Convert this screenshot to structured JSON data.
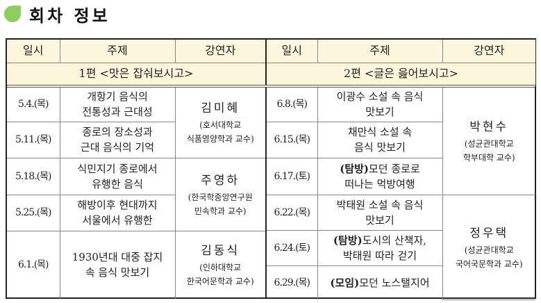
{
  "title": "회차 정보",
  "accent_color": "#8dcf5f",
  "header_bg": "#fdf6dc",
  "columns": [
    "일시",
    "주제",
    "강연자"
  ],
  "part1": {
    "label": "1편 <맛은 잡숴보시고>",
    "rows": [
      {
        "date": "5.4.(목)",
        "topic_l1": "개항기 음식의",
        "topic_l2": "전통성과 근대성"
      },
      {
        "date": "5.11.(목)",
        "topic_l1": "종로의 장소성과",
        "topic_l2": "근대 음식의 기억"
      },
      {
        "date": "5.18.(목)",
        "topic_l1": "식민지기 종로에서",
        "topic_l2": "유행한 음식"
      },
      {
        "date": "5.25.(목)",
        "topic_l1": "해방이후 현대까지",
        "topic_l2": "서울에서 유행한"
      },
      {
        "date": "6.1.(목)",
        "topic_l1": "1930년대 대중 잡지",
        "topic_l2": "속 음식 맛보기"
      }
    ],
    "speakers": [
      {
        "name": "김미혜",
        "aff_l1": "(호서대학교",
        "aff_l2": "식품영양학과 교수)"
      },
      {
        "name": "주영하",
        "aff_l1": "(한국학중앙연구원",
        "aff_l2": "민속학과 교수)"
      },
      {
        "name": "김동식",
        "aff_l1": "(인하대학교",
        "aff_l2": "한국어문학과 교수)"
      }
    ]
  },
  "part2": {
    "label": "2편 <글은 읊어보시고>",
    "rows": [
      {
        "date": "6.8.(목)",
        "prefix": "",
        "topic_l1": "이광수 소설 속 음식",
        "topic_l2": "맛보기"
      },
      {
        "date": "6.15.(목)",
        "prefix": "",
        "topic_l1": "채만식 소설 속",
        "topic_l2": "음식 맛보기"
      },
      {
        "date": "6.17.(토)",
        "prefix": "(탐방)",
        "topic_l1": "모던 종로로",
        "topic_l2": "떠나는 먹방여행"
      },
      {
        "date": "6.22.(목)",
        "prefix": "",
        "topic_l1": "박태원 소설 속 음식",
        "topic_l2": "맛보기"
      },
      {
        "date": "6.24.(토)",
        "prefix": "(탐방)",
        "topic_l1": "도시의 산책자,",
        "topic_l2": "박태원 따라 걷기"
      },
      {
        "date": "6.29.(목)",
        "prefix": "(모임)",
        "topic_l1": "모던 노스탤지어",
        "topic_l2": ""
      }
    ],
    "speakers": [
      {
        "name": "박현수",
        "aff_l1": "(성균관대학교",
        "aff_l2": "학부대학 교수)"
      },
      {
        "name": "정우택",
        "aff_l1": "(성균관대학교",
        "aff_l2": "국어국문학과 교수)"
      }
    ]
  }
}
